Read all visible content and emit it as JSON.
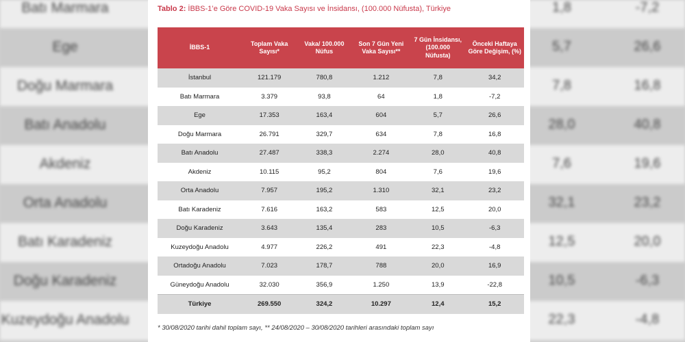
{
  "caption": {
    "label": "Tablo 2:",
    "text": " İBBS-1’e Göre COVID-19 Vaka Sayısı ve İnsidansı, (100.000 Nüfusta), Türkiye"
  },
  "headers": [
    "İBBS-1",
    "Toplam Vaka Sayısı*",
    "Vaka/ 100.000 Nüfus",
    "Son 7 Gün Yeni Vaka Sayısı**",
    "7 Gün İnsidansı, (100.000 Nüfusta)",
    "Önceki Haftaya Göre Değişim, (%)"
  ],
  "rows": [
    [
      "İstanbul",
      "121.179",
      "780,8",
      "1.212",
      "7,8",
      "34,2"
    ],
    [
      "Batı Marmara",
      "3.379",
      "93,8",
      "64",
      "1,8",
      "-7,2"
    ],
    [
      "Ege",
      "17.353",
      "163,4",
      "604",
      "5,7",
      "26,6"
    ],
    [
      "Doğu Marmara",
      "26.791",
      "329,7",
      "634",
      "7,8",
      "16,8"
    ],
    [
      "Batı Anadolu",
      "27.487",
      "338,3",
      "2.274",
      "28,0",
      "40,8"
    ],
    [
      "Akdeniz",
      "10.115",
      "95,2",
      "804",
      "7,6",
      "19,6"
    ],
    [
      "Orta Anadolu",
      "7.957",
      "195,2",
      "1.310",
      "32,1",
      "23,2"
    ],
    [
      "Batı Karadeniz",
      "7.616",
      "163,2",
      "583",
      "12,5",
      "20,0"
    ],
    [
      "Doğu Karadeniz",
      "3.643",
      "135,4",
      "283",
      "10,5",
      "-6,3"
    ],
    [
      "Kuzeydoğu Anadolu",
      "4.977",
      "226,2",
      "491",
      "22,3",
      "-4,8"
    ],
    [
      "Ortadoğu Anadolu",
      "7.023",
      "178,7",
      "788",
      "20,0",
      "16,9"
    ],
    [
      "Güneydoğu Anadolu",
      "32.030",
      "356,9",
      "1.250",
      "13,9",
      "-22,8"
    ]
  ],
  "total": [
    "Türkiye",
    "269.550",
    "324,2",
    "10.297",
    "12,4",
    "15,2"
  ],
  "note": "* 30/08/2020 tarihi dahil toplam sayı, ** 24/08/2020 – 30/08/2020 tarihleri arasındaki toplam sayı",
  "background": {
    "rows": [
      {
        "name": "Batı Marmara",
        "c1": "1,8",
        "c2": "-7,2"
      },
      {
        "name": "Ege",
        "c1": "5,7",
        "c2": "26,6"
      },
      {
        "name": "Doğu Marmara",
        "c1": "7,8",
        "c2": "16,8"
      },
      {
        "name": "Batı Anadolu",
        "c1": "28,0",
        "c2": "40,8"
      },
      {
        "name": "Akdeniz",
        "c1": "7,6",
        "c2": "19,6"
      },
      {
        "name": "Orta Anadolu",
        "c1": "32,1",
        "c2": "23,2"
      },
      {
        "name": "Batı Karadeniz",
        "c1": "12,5",
        "c2": "20,0"
      },
      {
        "name": "Doğu Karadeniz",
        "c1": "10,5",
        "c2": "-6,3"
      },
      {
        "name": "Kuzeydoğu Anadolu",
        "c1": "22,3",
        "c2": "-4,8"
      }
    ]
  }
}
